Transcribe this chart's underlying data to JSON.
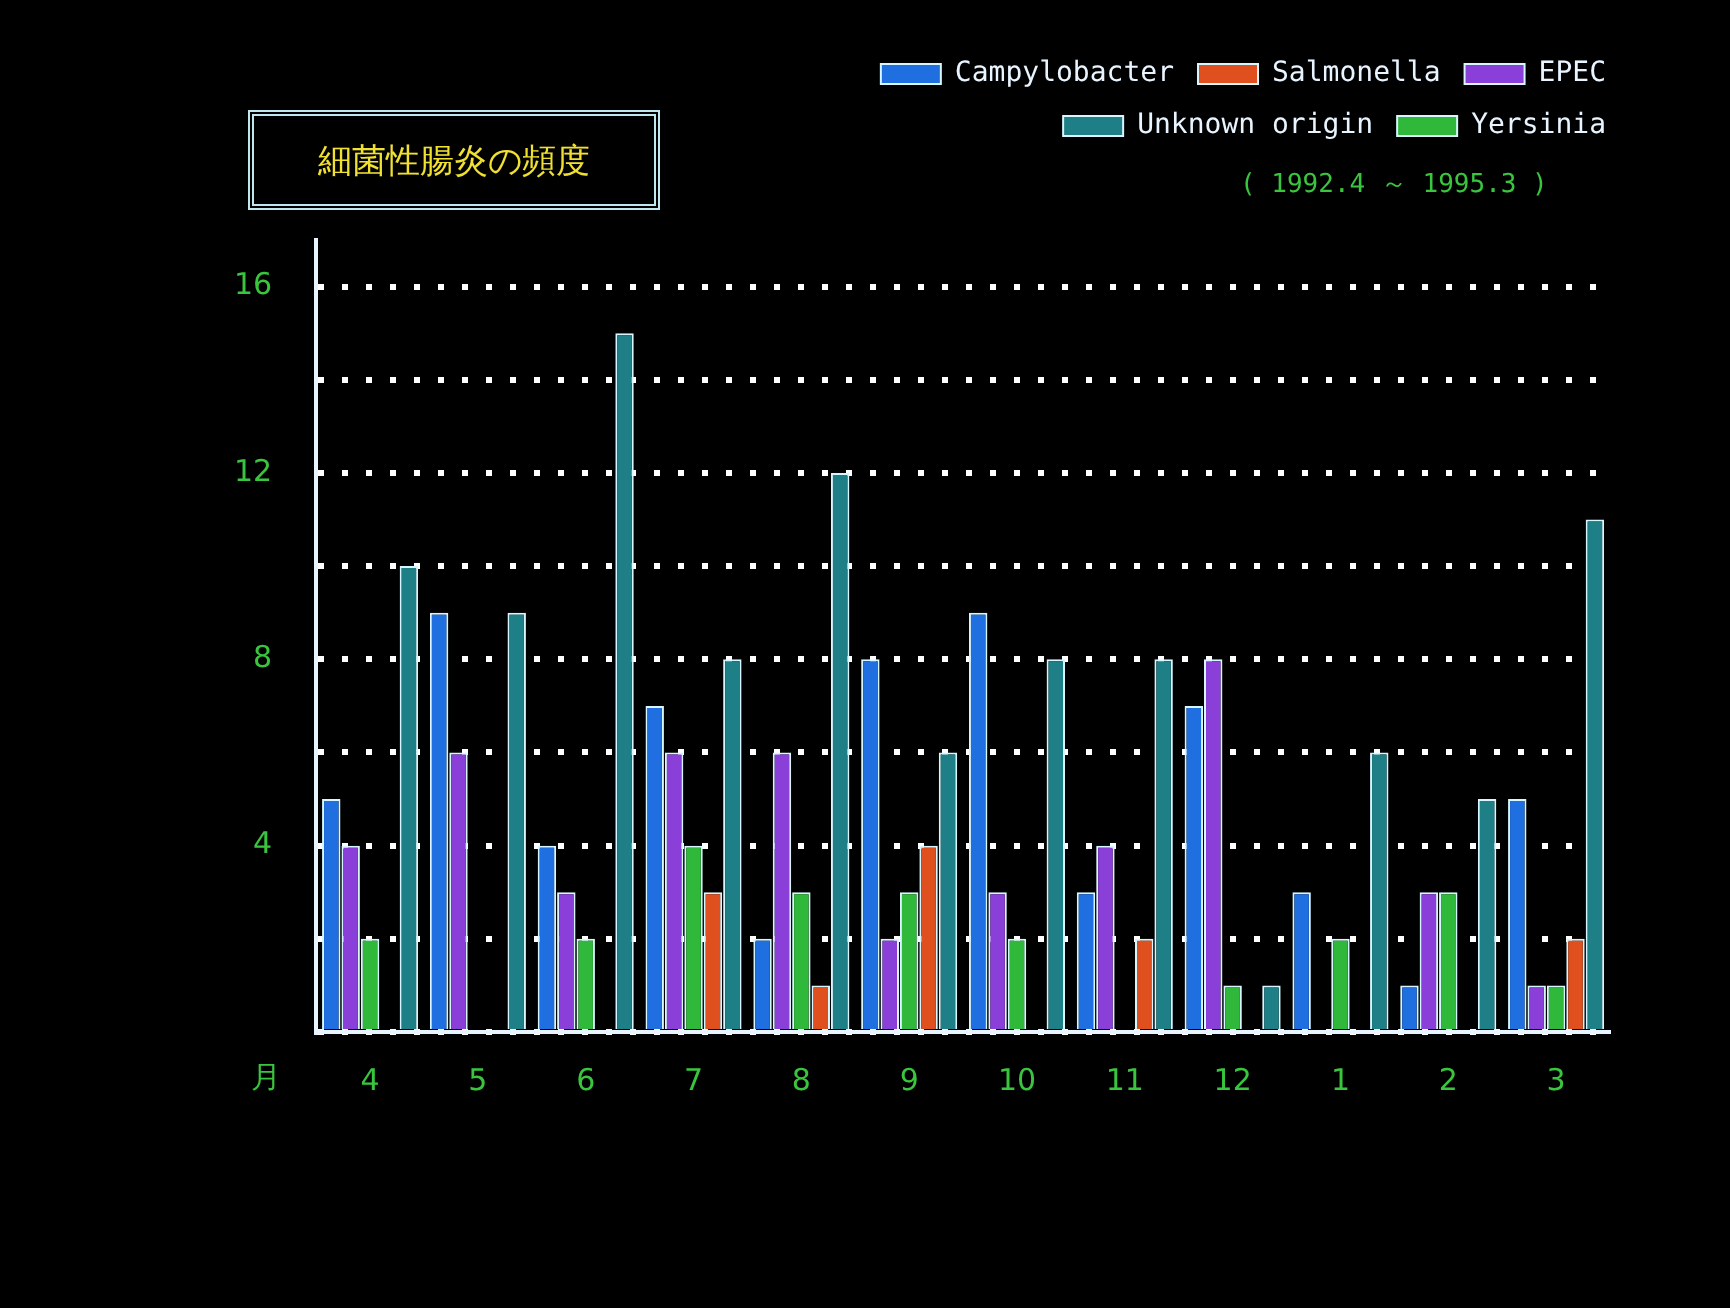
{
  "chart_data": {
    "type": "bar",
    "title": "細菌性腸炎の頻度",
    "xlabel": "月",
    "categories": [
      "4",
      "5",
      "6",
      "7",
      "8",
      "9",
      "10",
      "11",
      "12",
      "1",
      "2",
      "3"
    ],
    "series": [
      {
        "name": "Campylobacter",
        "color": "#1f6fe0",
        "values": [
          5,
          9,
          4,
          7,
          2,
          8,
          9,
          3,
          7,
          3,
          1,
          5
        ]
      },
      {
        "name": "EPEC",
        "color": "#8a3fd8",
        "values": [
          4,
          6,
          3,
          6,
          6,
          2,
          3,
          4,
          8,
          0,
          3,
          1
        ]
      },
      {
        "name": "Yersinia",
        "color": "#2fb83a",
        "values": [
          2,
          0,
          2,
          4,
          3,
          3,
          2,
          0,
          1,
          2,
          3,
          1
        ]
      },
      {
        "name": "Salmonella",
        "color": "#e0501e",
        "values": [
          0,
          0,
          0,
          3,
          1,
          4,
          0,
          2,
          0,
          0,
          0,
          2
        ]
      },
      {
        "name": "Unknown origin",
        "color": "#1e7f86",
        "values": [
          10,
          9,
          15,
          8,
          12,
          6,
          8,
          8,
          1,
          6,
          5,
          11
        ]
      }
    ],
    "ylim": [
      0,
      17
    ],
    "yticks": [
      {
        "value": 0,
        "label": null
      },
      {
        "value": 2,
        "label": null
      },
      4,
      {
        "value": 6,
        "label": null
      },
      8,
      {
        "value": 10,
        "label": null
      },
      12,
      {
        "value": 14,
        "label": null
      },
      16
    ],
    "grid": "y",
    "legend": "top right",
    "annotations": [
      "( 1992.4 ～ 1995.3 )"
    ]
  }
}
